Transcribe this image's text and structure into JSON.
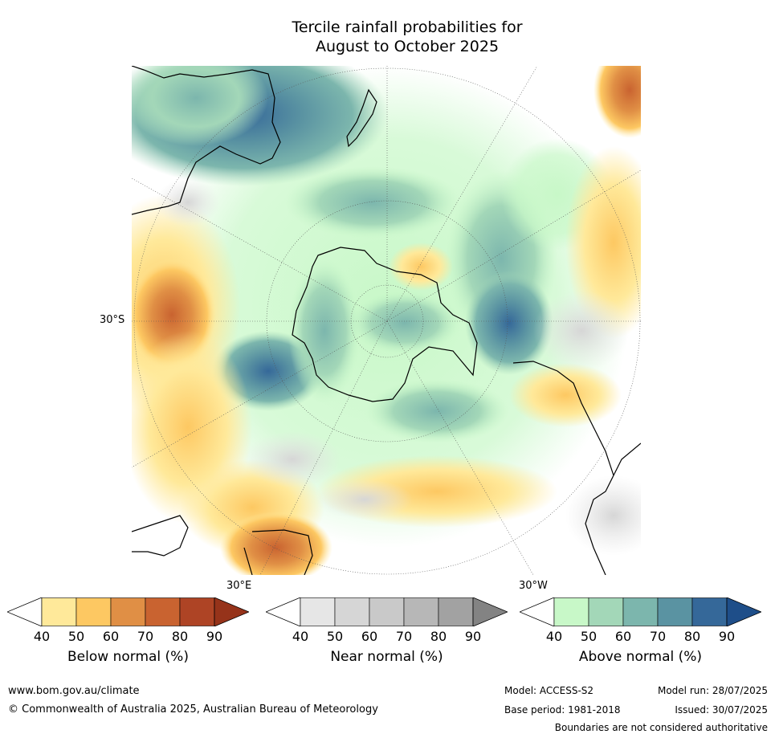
{
  "title": {
    "line1": "Tercile rainfall probabilities for",
    "line2": "August to October 2025"
  },
  "map": {
    "lat_label": "30°S",
    "lon_label_east": "30°E",
    "lon_label_west": "30°W"
  },
  "colorbars": [
    {
      "label": "Below normal (%)",
      "ticks": [
        "40",
        "50",
        "60",
        "70",
        "80",
        "90"
      ],
      "colors": [
        "#ffffff",
        "#ffe99a",
        "#fdc862",
        "#e08f45",
        "#c96330",
        "#ae4425",
        "#96331a"
      ]
    },
    {
      "label": "Near normal (%)",
      "ticks": [
        "40",
        "50",
        "60",
        "70",
        "80",
        "90"
      ],
      "colors": [
        "#ffffff",
        "#e6e6e6",
        "#d6d6d6",
        "#c9c9c9",
        "#b7b7b7",
        "#a2a2a2",
        "#838383"
      ]
    },
    {
      "label": "Above normal (%)",
      "ticks": [
        "40",
        "50",
        "60",
        "70",
        "80",
        "90"
      ],
      "colors": [
        "#ffffff",
        "#c8f8c8",
        "#a3d7b8",
        "#7cb6ad",
        "#5a93a2",
        "#356899",
        "#1e4e89"
      ]
    }
  ],
  "footer": {
    "website": "www.bom.gov.au/climate",
    "copyright": "© Commonwealth of Australia 2025, Australian Bureau of Meteorology",
    "model": "Model: ACCESS-S2",
    "base_period": "Base period: 1981-2018",
    "model_run": "Model run: 28/07/2025",
    "issued": "Issued: 30/07/2025",
    "disclaimer": "Boundaries are not considered authoritative"
  }
}
